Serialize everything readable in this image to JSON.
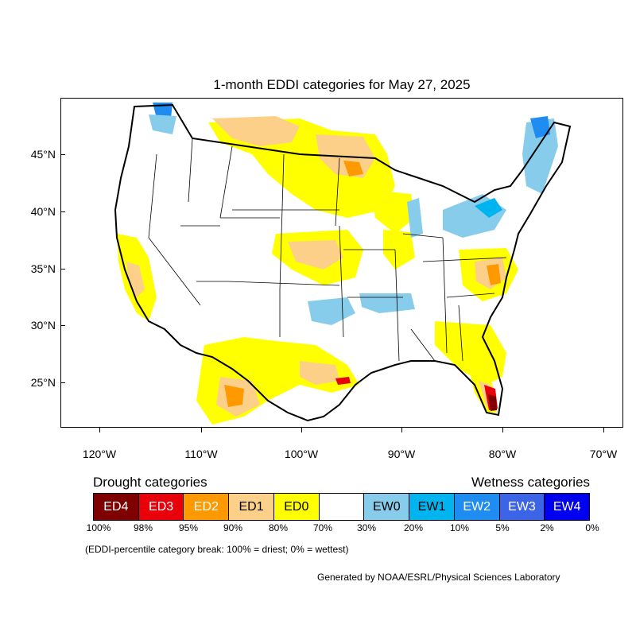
{
  "title": "1-month EDDI categories for May 27, 2025",
  "axes": {
    "lat_labels": [
      "45°N",
      "40°N",
      "35°N",
      "30°N",
      "25°N"
    ],
    "lon_labels": [
      "120°W",
      "110°W",
      "100°W",
      "90°W",
      "80°W",
      "70°W"
    ]
  },
  "legend": {
    "drought_heading": "Drought categories",
    "wetness_heading": "Wetness categories",
    "categories": [
      {
        "label": "ED4",
        "color": "#7f0000",
        "text_color": "#ffffff"
      },
      {
        "label": "ED3",
        "color": "#e8000b",
        "text_color": "#ffffff"
      },
      {
        "label": "ED2",
        "color": "#ff9900",
        "text_color": "#ffffff"
      },
      {
        "label": "ED1",
        "color": "#fdd08a",
        "text_color": "#000000"
      },
      {
        "label": "ED0",
        "color": "#ffff00",
        "text_color": "#000000"
      },
      {
        "label": "",
        "color": "#ffffff",
        "text_color": "#000000"
      },
      {
        "label": "EW0",
        "color": "#87cdeb",
        "text_color": "#000000"
      },
      {
        "label": "EW1",
        "color": "#00b4f0",
        "text_color": "#000000"
      },
      {
        "label": "EW2",
        "color": "#1e8cf0",
        "text_color": "#ffffff"
      },
      {
        "label": "EW3",
        "color": "#3c64e6",
        "text_color": "#ffffff"
      },
      {
        "label": "EW4",
        "color": "#0000f0",
        "text_color": "#ffffff"
      }
    ],
    "breaks": [
      "100%",
      "98%",
      "95%",
      "90%",
      "80%",
      "70%",
      "30%",
      "20%",
      "10%",
      "5%",
      "2%",
      "0%"
    ]
  },
  "note": "(EDDI-percentile category break: 100% = driest; 0% = wettest)",
  "credit": "Generated by NOAA/ESRL/Physical Sciences Laboratory"
}
